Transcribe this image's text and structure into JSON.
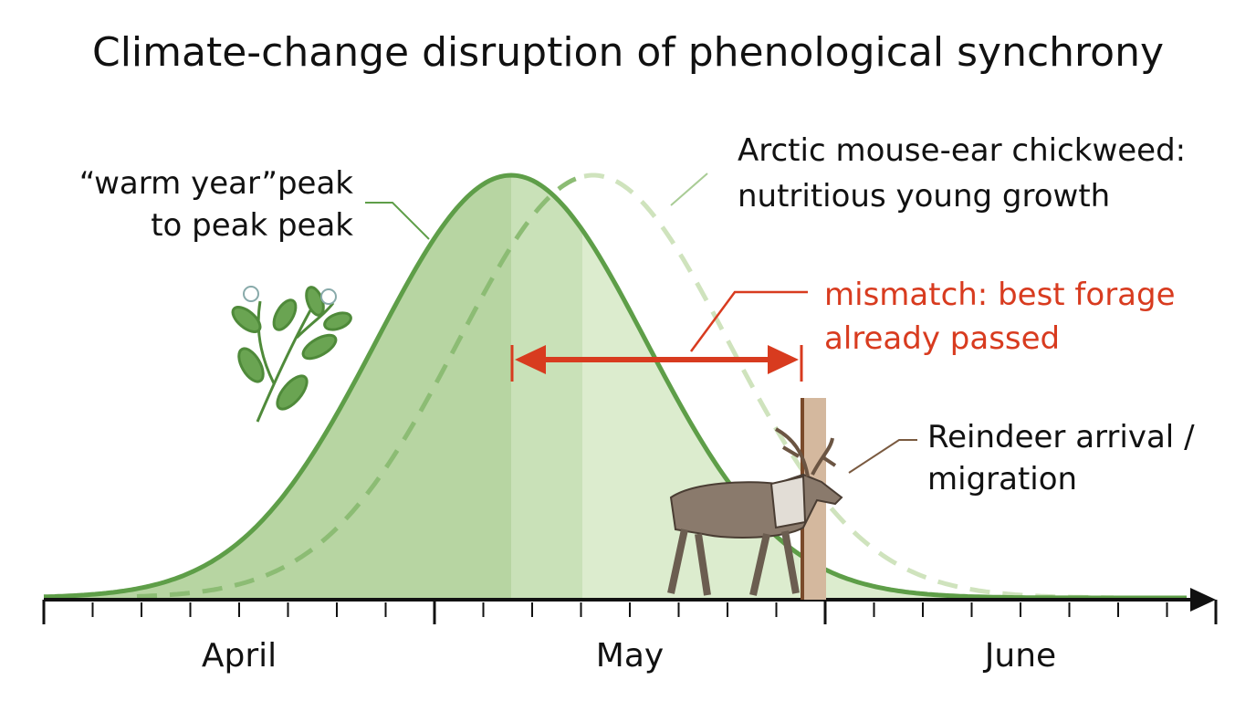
{
  "title": "Climate-change disruption of phenological synchrony",
  "annotations": {
    "warm_peak": [
      "“warm year”peak",
      "to peak peak"
    ],
    "chickweed": [
      "Arctic mouse-ear chickweed:",
      "nutritious young growth"
    ],
    "mismatch": [
      "mismatch: best forage",
      "already passed"
    ],
    "reindeer": [
      "Reindeer arrival /",
      "migration"
    ]
  },
  "axis": {
    "months": [
      "April",
      "May",
      "June"
    ]
  }
}
